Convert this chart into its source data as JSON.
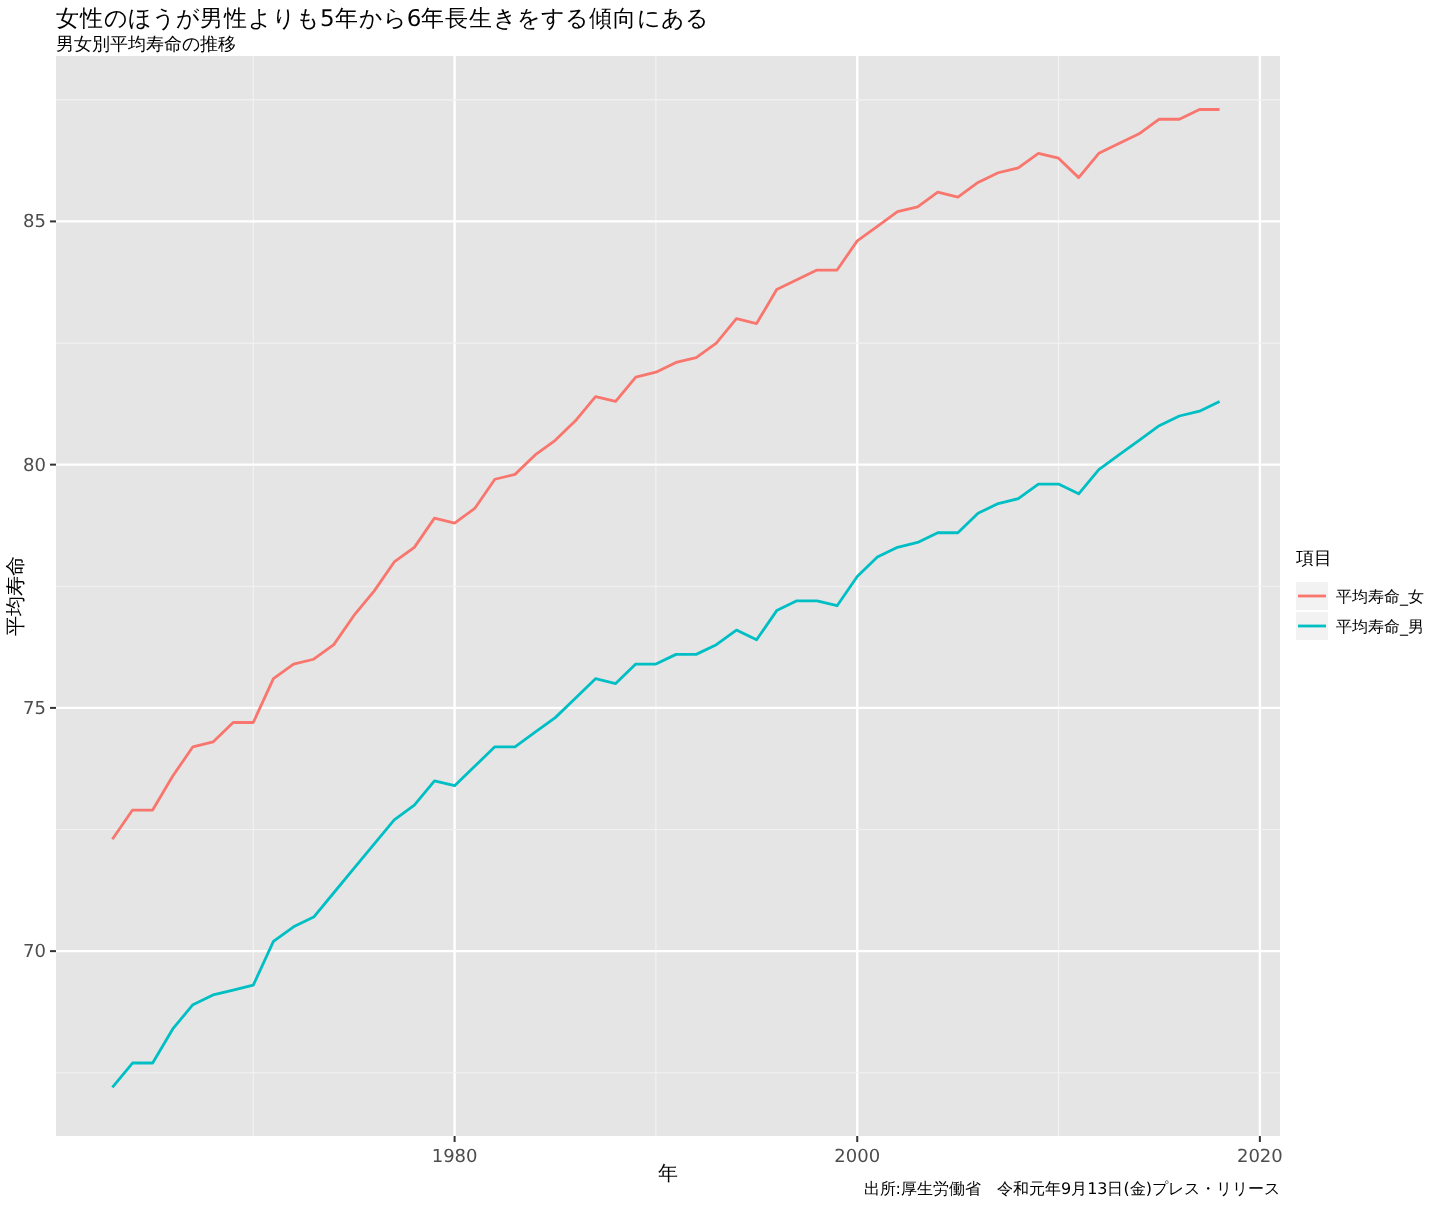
{
  "chart_data": {
    "type": "line",
    "title": "女性のほうが男性よりも5年から6年長生きをする傾向にある",
    "subtitle": "男女別平均寿命の推移",
    "xlabel": "年",
    "ylabel": "平均寿命",
    "legend_title": "項目",
    "legend": "right",
    "grid": true,
    "annotations": [
      "出所:厚生労働省　令和元年9月13日(金)プレス・リリース"
    ],
    "xlim": [
      1960.2,
      2021
    ],
    "xticks": [
      1980,
      2000,
      2020
    ],
    "ylim": [
      66.2,
      88.4
    ],
    "yticks": [
      70,
      75,
      80,
      85
    ],
    "x": [
      1963,
      1964,
      1965,
      1966,
      1967,
      1968,
      1969,
      1970,
      1971,
      1972,
      1973,
      1974,
      1975,
      1976,
      1977,
      1978,
      1979,
      1980,
      1981,
      1982,
      1983,
      1984,
      1985,
      1986,
      1987,
      1988,
      1989,
      1990,
      1991,
      1992,
      1993,
      1994,
      1995,
      1996,
      1997,
      1998,
      1999,
      2000,
      2001,
      2002,
      2003,
      2004,
      2005,
      2006,
      2007,
      2008,
      2009,
      2010,
      2011,
      2012,
      2013,
      2014,
      2015,
      2016,
      2017,
      2018
    ],
    "series": [
      {
        "name": "平均寿命_女",
        "color": "#f8766d",
        "values": [
          72.3,
          72.9,
          72.9,
          73.6,
          74.2,
          74.3,
          74.7,
          74.7,
          75.6,
          75.9,
          76.0,
          76.3,
          76.9,
          77.4,
          78.0,
          78.3,
          78.9,
          78.8,
          79.1,
          79.7,
          79.8,
          80.2,
          80.5,
          80.9,
          81.4,
          81.3,
          81.8,
          81.9,
          82.1,
          82.2,
          82.5,
          83.0,
          82.9,
          83.6,
          83.8,
          84.0,
          84.0,
          84.6,
          84.9,
          85.2,
          85.3,
          85.6,
          85.5,
          85.8,
          86.0,
          86.1,
          86.4,
          86.3,
          85.9,
          86.4,
          86.6,
          86.8,
          87.1,
          87.1,
          87.3,
          87.3
        ]
      },
      {
        "name": "平均寿命_男",
        "color": "#00bfc4",
        "values": [
          67.2,
          67.7,
          67.7,
          68.4,
          68.9,
          69.1,
          69.2,
          69.3,
          70.2,
          70.5,
          70.7,
          71.2,
          71.7,
          72.2,
          72.7,
          73.0,
          73.5,
          73.4,
          73.8,
          74.2,
          74.2,
          74.5,
          74.8,
          75.2,
          75.6,
          75.5,
          75.9,
          75.9,
          76.1,
          76.1,
          76.3,
          76.6,
          76.4,
          77.0,
          77.2,
          77.2,
          77.1,
          77.7,
          78.1,
          78.3,
          78.4,
          78.6,
          78.6,
          79.0,
          79.2,
          79.3,
          79.6,
          79.6,
          79.4,
          79.9,
          80.2,
          80.5,
          80.8,
          81.0,
          81.1,
          81.3
        ]
      }
    ]
  }
}
